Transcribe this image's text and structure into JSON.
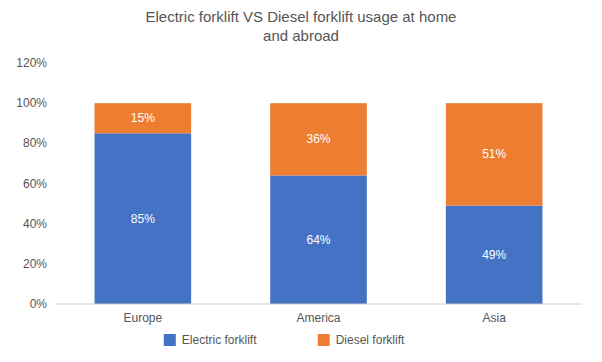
{
  "chart_data": {
    "type": "bar",
    "stacked": true,
    "data_labels": true,
    "grid": false,
    "legend": "bottom",
    "title": "Electric forklift VS Diesel forklift usage at home\nand abroad",
    "categories": [
      "Europe",
      "America",
      "Asia"
    ],
    "series": [
      {
        "name": "Electric forklift",
        "color": "#4472C4",
        "values": [
          0.85,
          0.64,
          0.49
        ],
        "value_labels": [
          "85%",
          "64%",
          "49%"
        ]
      },
      {
        "name": "Diesel forklift",
        "color": "#ED7D31",
        "values": [
          0.15,
          0.36,
          0.51
        ],
        "value_labels": [
          "15%",
          "36%",
          "51%"
        ]
      }
    ],
    "ylim": [
      0,
      1.2
    ],
    "yticks": [
      {
        "value": 0,
        "label": "0%"
      },
      {
        "value": 0.2,
        "label": "20%"
      },
      {
        "value": 0.4,
        "label": "40%"
      },
      {
        "value": 0.6,
        "label": "60%"
      },
      {
        "value": 0.8,
        "label": "80%"
      },
      {
        "value": 1.0,
        "label": "100%"
      },
      {
        "value": 1.2,
        "label": "120%"
      }
    ]
  }
}
